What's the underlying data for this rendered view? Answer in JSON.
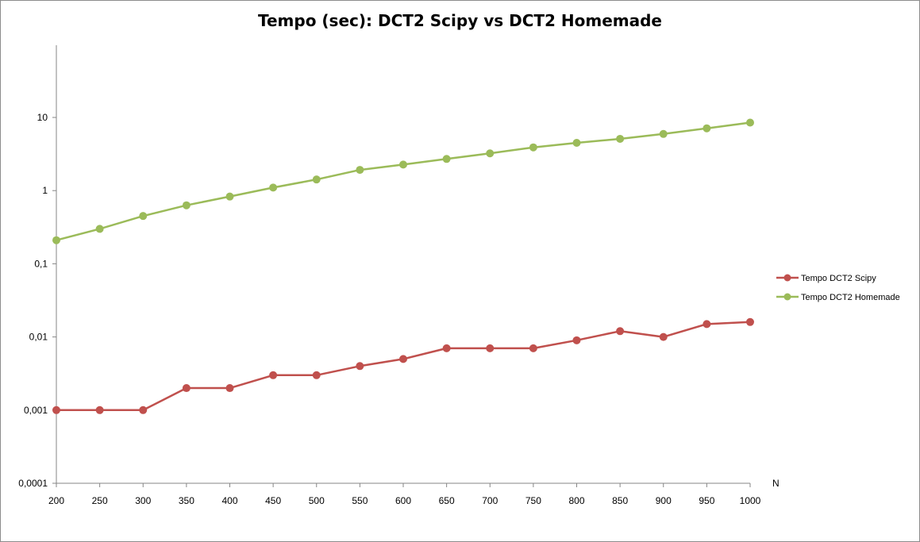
{
  "chart_data": {
    "type": "line",
    "title": "Tempo (sec): DCT2 Scipy vs DCT2 Homemade",
    "xlabel": "N",
    "ylabel": "",
    "y_scale": "log",
    "ylim": [
      0.0001,
      100
    ],
    "y_ticks": [
      "0,0001",
      "0,001",
      "0,01",
      "0,1",
      "1",
      "10"
    ],
    "y_tick_values": [
      0.0001,
      0.001,
      0.01,
      0.1,
      1,
      10
    ],
    "categories": [
      "200",
      "250",
      "300",
      "350",
      "400",
      "450",
      "500",
      "550",
      "600",
      "650",
      "700",
      "750",
      "800",
      "850",
      "900",
      "950",
      "1000"
    ],
    "grid": false,
    "legend_position": "right",
    "series": [
      {
        "name": "Tempo DCT2 Scipy",
        "color": "#c0504d",
        "values": [
          0.001,
          0.001,
          0.001,
          0.002,
          0.002,
          0.003,
          0.003,
          0.004,
          0.005,
          0.007,
          0.007,
          0.007,
          0.009,
          0.012,
          0.01,
          0.015,
          0.016
        ]
      },
      {
        "name": "Tempo DCT2 Homemade",
        "color": "#9bbb59",
        "values": [
          0.21,
          0.3,
          0.45,
          0.63,
          0.83,
          1.1,
          1.42,
          1.92,
          2.27,
          2.71,
          3.23,
          3.9,
          4.5,
          5.1,
          5.95,
          7.1,
          8.5
        ]
      }
    ]
  }
}
